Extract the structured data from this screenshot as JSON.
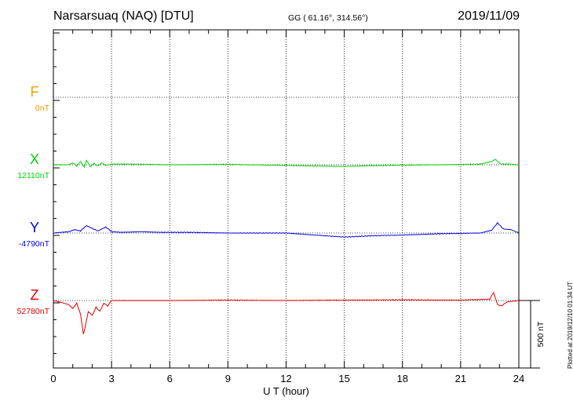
{
  "header": {
    "station": "Narsarsuaq (NAQ)  [DTU]",
    "coords": "GG ( 61.16°, 314.56°)",
    "date": "2019/11/09"
  },
  "plotted_note": "Plotted at 2019/12/10 01:34 UT",
  "chart_data": {
    "type": "line",
    "xlabel": "U T (hour)",
    "xlim": [
      0,
      24
    ],
    "x_ticks": [
      0,
      3,
      6,
      9,
      12,
      15,
      18,
      21,
      24
    ],
    "x_tick_labels": [
      "0",
      "3",
      "6",
      "9",
      "12",
      "15",
      "18",
      "21",
      "24"
    ],
    "grid": true,
    "scale_bar_label": "500 nT",
    "scale_bar_nT": 500,
    "series": [
      {
        "name": "F",
        "baseline_label": "0nT",
        "color": "#f5a000",
        "has_data": false,
        "x": [],
        "y": []
      },
      {
        "name": "X",
        "baseline_label": "12110nT",
        "color": "#00d000",
        "has_data": true,
        "x": [
          0,
          0.8,
          1.0,
          1.2,
          1.4,
          1.6,
          1.7,
          1.9,
          2.1,
          2.3,
          2.5,
          2.7,
          3.0,
          4,
          6,
          9,
          12,
          14,
          15,
          16,
          18,
          20,
          22,
          22.6,
          22.8,
          23.0,
          23.2,
          23.5,
          24
        ],
        "y": [
          0,
          0,
          15,
          -10,
          25,
          -20,
          35,
          -15,
          10,
          -10,
          15,
          -5,
          5,
          5,
          0,
          3,
          -5,
          -10,
          -12,
          -8,
          -3,
          0,
          5,
          25,
          40,
          10,
          5,
          5,
          0
        ]
      },
      {
        "name": "Y",
        "baseline_label": "-4790nT",
        "color": "#0000dd",
        "has_data": true,
        "x": [
          0,
          0.8,
          1.1,
          1.4,
          1.7,
          2.0,
          2.3,
          2.7,
          3.0,
          3.5,
          4.5,
          5.5,
          7,
          9,
          12,
          13.5,
          15,
          16.5,
          18,
          20,
          22,
          22.6,
          22.9,
          23.2,
          23.6,
          24
        ],
        "y": [
          0,
          10,
          25,
          15,
          55,
          35,
          15,
          45,
          10,
          5,
          10,
          5,
          5,
          0,
          0,
          -15,
          -30,
          -20,
          -15,
          -5,
          0,
          20,
          75,
          30,
          25,
          0
        ]
      },
      {
        "name": "Z",
        "baseline_label": "52780nT",
        "color": "#e00000",
        "has_data": true,
        "x": [
          0,
          0.8,
          1.0,
          1.2,
          1.4,
          1.55,
          1.65,
          1.8,
          2.0,
          2.2,
          2.4,
          2.6,
          2.8,
          3.0,
          4,
          6,
          9,
          12,
          15,
          18,
          21,
          22.5,
          22.7,
          22.9,
          23.1,
          23.4,
          24
        ],
        "y": [
          0,
          -30,
          -60,
          -20,
          -100,
          -250,
          -190,
          -80,
          -110,
          -50,
          -80,
          -20,
          -40,
          0,
          0,
          0,
          3,
          0,
          3,
          5,
          3,
          10,
          60,
          -30,
          -40,
          -10,
          0
        ]
      }
    ]
  }
}
